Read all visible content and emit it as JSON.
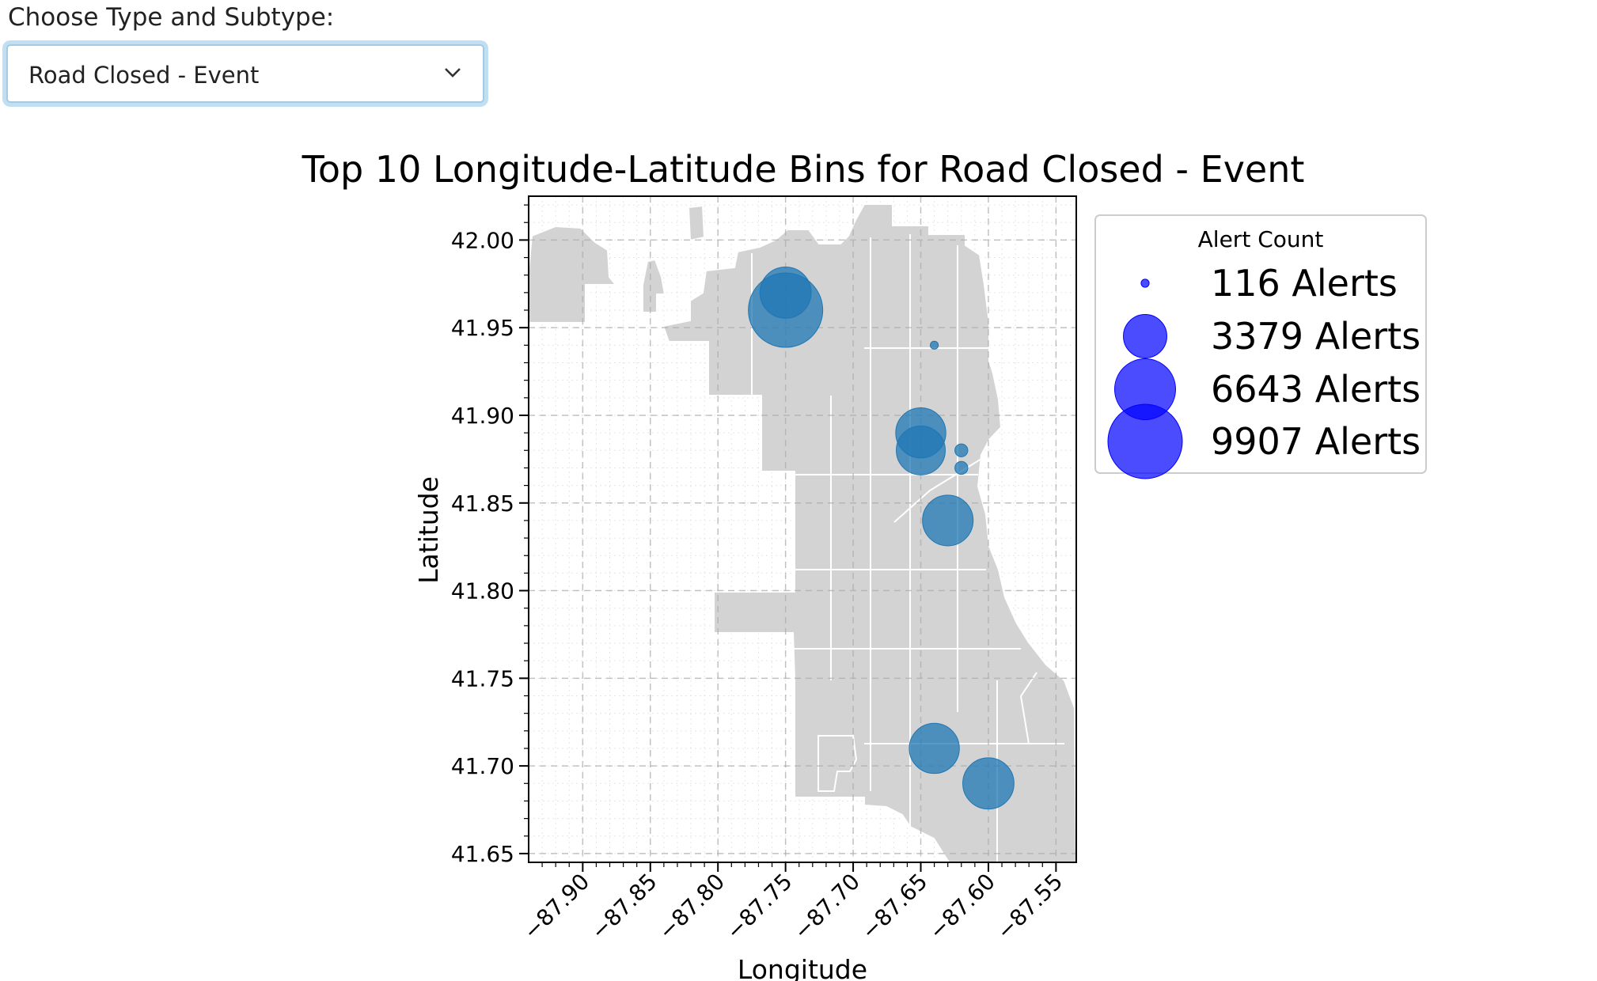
{
  "selector": {
    "label": "Choose Type and Subtype:",
    "selected": "Road Closed - Event",
    "icon": "chevron-down-icon"
  },
  "colors": {
    "marker": "#1f77b4",
    "legend_marker": "#0000ff",
    "basemap_fill": "#d3d3d3",
    "basemap_edge": "#ffffff"
  },
  "chart_data": {
    "type": "scatter",
    "title": "Top 10 Longitude-Latitude Bins for Road Closed - Event",
    "xlabel": "Longitude",
    "ylabel": "Latitude",
    "xlim": [
      -87.94,
      -87.535
    ],
    "ylim": [
      41.645,
      42.025
    ],
    "xticks": [
      -87.9,
      -87.85,
      -87.8,
      -87.75,
      -87.7,
      -87.65,
      -87.6,
      -87.55
    ],
    "yticks": [
      41.65,
      41.7,
      41.75,
      41.8,
      41.85,
      41.9,
      41.95,
      42.0
    ],
    "grid": true,
    "basemap": "Chicago community areas",
    "legend": {
      "title": "Alert Count",
      "placement": "outside-right",
      "entries": [
        {
          "count": 116,
          "label": "116 Alerts"
        },
        {
          "count": 3379,
          "label": "3379 Alerts"
        },
        {
          "count": 6643,
          "label": "6643 Alerts"
        },
        {
          "count": 9907,
          "label": "9907 Alerts"
        }
      ]
    },
    "points": [
      {
        "x": -87.75,
        "y": 41.96,
        "alerts": 9907
      },
      {
        "x": -87.75,
        "y": 41.97,
        "alerts": 4700
      },
      {
        "x": -87.65,
        "y": 41.89,
        "alerts": 4500
      },
      {
        "x": -87.65,
        "y": 41.88,
        "alerts": 4300
      },
      {
        "x": -87.63,
        "y": 41.84,
        "alerts": 4600
      },
      {
        "x": -87.64,
        "y": 41.71,
        "alerts": 4500
      },
      {
        "x": -87.6,
        "y": 41.69,
        "alerts": 4700
      },
      {
        "x": -87.64,
        "y": 41.94,
        "alerts": 116
      },
      {
        "x": -87.62,
        "y": 41.88,
        "alerts": 300
      },
      {
        "x": -87.62,
        "y": 41.87,
        "alerts": 300
      }
    ]
  }
}
